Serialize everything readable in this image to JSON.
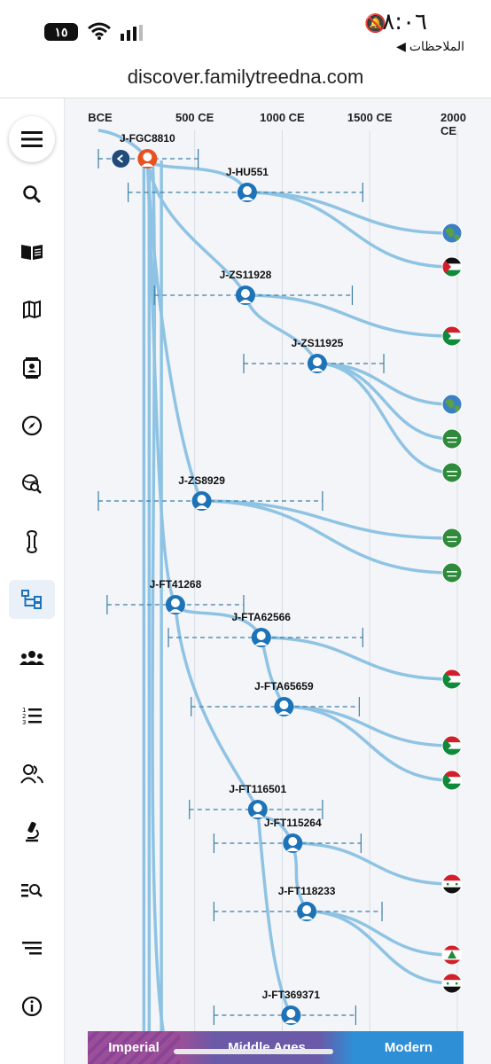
{
  "status": {
    "time": "٨:٠٦",
    "battery": "١٥",
    "back_label": "◀ الملاحظات"
  },
  "browser": {
    "url": "discover.familytreedna.com"
  },
  "sidebar": {
    "items": [
      {
        "name": "menu",
        "icon": "hamburger-icon"
      },
      {
        "name": "search",
        "icon": "search-icon"
      },
      {
        "name": "book",
        "icon": "book-icon"
      },
      {
        "name": "map",
        "icon": "map-icon"
      },
      {
        "name": "profile-card",
        "icon": "contact-card-icon"
      },
      {
        "name": "compass",
        "icon": "compass-icon"
      },
      {
        "name": "globe-search",
        "icon": "globe-search-icon"
      },
      {
        "name": "bone",
        "icon": "bone-icon"
      },
      {
        "name": "tree",
        "icon": "tree-icon",
        "active": true
      },
      {
        "name": "groups",
        "icon": "groups-icon"
      },
      {
        "name": "numbered-list",
        "icon": "numbered-list-icon"
      },
      {
        "name": "people",
        "icon": "people-icon"
      },
      {
        "name": "microscope",
        "icon": "microscope-icon"
      },
      {
        "name": "list-search",
        "icon": "list-search-icon"
      },
      {
        "name": "sort",
        "icon": "sort-icon"
      },
      {
        "name": "info",
        "icon": "info-icon"
      }
    ]
  },
  "timeline": {
    "ticks": [
      {
        "label": "BCE",
        "year": -50
      },
      {
        "label": "500 CE",
        "year": 500
      },
      {
        "label": "1000 CE",
        "year": 1000
      },
      {
        "label": "1500 CE",
        "year": 1500
      },
      {
        "label": "2000 CE",
        "year": 2000
      }
    ],
    "nodes": [
      {
        "id": "n0",
        "label": "J-FGC8810",
        "year": 230,
        "range": [
          -50,
          520
        ],
        "highlight": true
      },
      {
        "id": "n1",
        "label": "J-HU551",
        "year": 800,
        "range": [
          120,
          1460
        ],
        "parent": "n0"
      },
      {
        "id": "n2",
        "label": "J-ZS11928",
        "year": 790,
        "range": [
          270,
          1400
        ],
        "parent": "n0"
      },
      {
        "id": "n3",
        "label": "J-ZS11925",
        "year": 1200,
        "range": [
          780,
          1580
        ],
        "parent": "n2"
      },
      {
        "id": "n4",
        "label": "J-ZS8929",
        "year": 540,
        "range": [
          -50,
          1230
        ],
        "parent": "n0"
      },
      {
        "id": "n5",
        "label": "J-FT41268",
        "year": 390,
        "range": [
          0,
          780
        ],
        "parent": "n0"
      },
      {
        "id": "n6",
        "label": "J-FTA62566",
        "year": 880,
        "range": [
          350,
          1460
        ],
        "parent": "n5"
      },
      {
        "id": "n7",
        "label": "J-FTA65659",
        "year": 1010,
        "range": [
          480,
          1440
        ],
        "parent": "n6"
      },
      {
        "id": "n8",
        "label": "J-FT116501",
        "year": 860,
        "range": [
          470,
          1230
        ],
        "parent": "n5"
      },
      {
        "id": "n9",
        "label": "J-FT115264",
        "year": 1060,
        "range": [
          610,
          1450
        ],
        "parent": "n8"
      },
      {
        "id": "n10",
        "label": "J-FT118233",
        "year": 1140,
        "range": [
          610,
          1570
        ],
        "parent": "n9"
      },
      {
        "id": "n11",
        "label": "J-FT369371",
        "year": 1050,
        "range": [
          610,
          1420
        ],
        "parent": "n8"
      }
    ],
    "leaves": [
      {
        "flag": "globe",
        "parent": "n1"
      },
      {
        "flag": "palestine",
        "parent": "n1"
      },
      {
        "flag": "sudan",
        "parent": "n2"
      },
      {
        "flag": "globe",
        "parent": "n3"
      },
      {
        "flag": "saudi",
        "parent": "n3"
      },
      {
        "flag": "saudi",
        "parent": "n3"
      },
      {
        "flag": "saudi",
        "parent": "n4"
      },
      {
        "flag": "saudi",
        "parent": "n4"
      },
      {
        "flag": "sudan",
        "parent": "n6"
      },
      {
        "flag": "sudan",
        "parent": "n7"
      },
      {
        "flag": "sudan",
        "parent": "n7"
      },
      {
        "flag": "syria",
        "parent": "n9"
      },
      {
        "flag": "lebanon",
        "parent": "n10"
      },
      {
        "flag": "syria",
        "parent": "n10"
      }
    ],
    "eras": [
      {
        "label": "Imperial",
        "color": "#9c4f98"
      },
      {
        "label": "Middle Ages",
        "color": "#6a5aa8"
      },
      {
        "label": "Modern",
        "color": "#2f8fd6"
      }
    ]
  },
  "colors": {
    "branch": "#8fc3e4",
    "node": "#1d73b8",
    "highlight": "#e8501f"
  }
}
